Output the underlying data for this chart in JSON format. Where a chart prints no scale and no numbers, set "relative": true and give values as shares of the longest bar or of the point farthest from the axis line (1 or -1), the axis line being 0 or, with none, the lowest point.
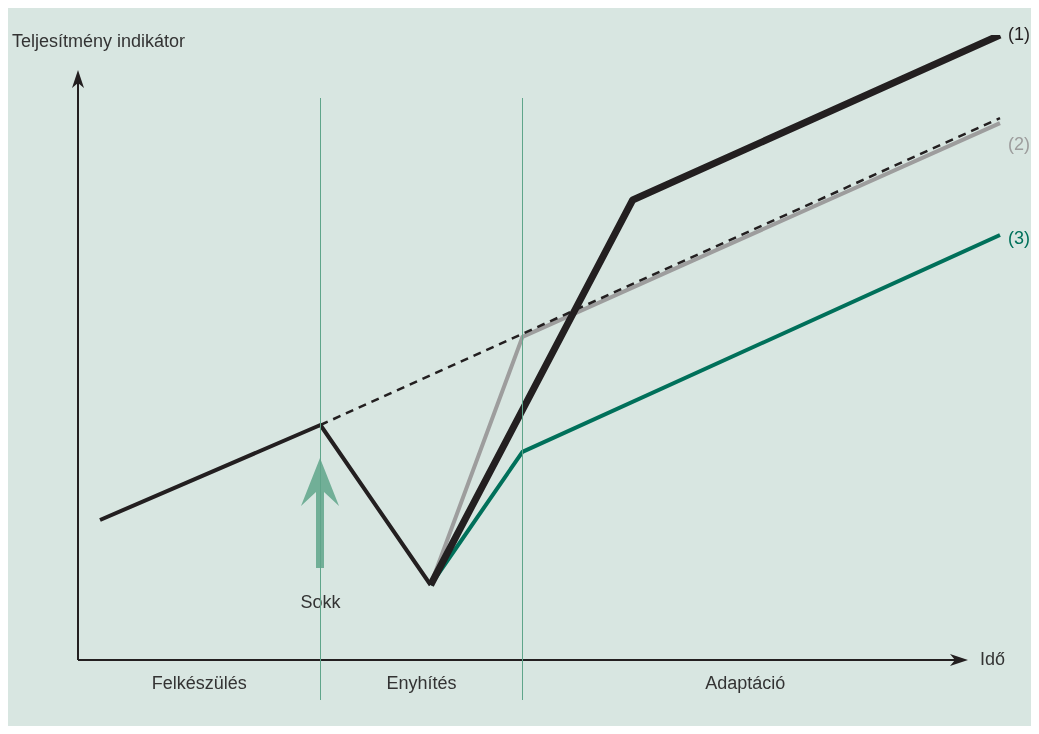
{
  "chart_data": {
    "type": "line",
    "relative": true,
    "xlabel": "Idő",
    "ylabel": "Teljesítmény indikátor",
    "marker": "none",
    "categories": [
      null,
      null,
      null,
      null,
      null,
      null,
      null,
      null,
      null,
      null,
      null,
      null,
      null,
      null,
      null,
      null,
      null,
      null,
      null,
      null,
      null,
      null,
      null,
      null,
      null,
      null,
      null,
      null,
      null,
      null,
      null,
      null,
      null,
      null,
      null,
      null,
      null,
      null,
      null,
      null,
      null,
      null,
      null,
      null,
      null,
      null,
      null,
      null,
      null,
      null
    ],
    "series": [
      {
        "color": "#231f20",
        "values": [
          0.224,
          null,
          null,
          null,
          null,
          null,
          null,
          null,
          null,
          null,
          null,
          null,
          0.376,
          null,
          null,
          null,
          null,
          null,
          0.12,
          null,
          null,
          null,
          null,
          null,
          null,
          null,
          null,
          null,
          null,
          null,
          null,
          null,
          null,
          null,
          null,
          null,
          null,
          null,
          null,
          null,
          null,
          null,
          null,
          null,
          null,
          null,
          null,
          null,
          null,
          null
        ]
      },
      {
        "color": "#231f20",
        "line_style": "dashed",
        "values": [
          null,
          null,
          null,
          null,
          null,
          null,
          null,
          null,
          null,
          null,
          null,
          null,
          0.376,
          null,
          null,
          null,
          null,
          null,
          null,
          null,
          null,
          null,
          null,
          null,
          null,
          null,
          null,
          null,
          null,
          null,
          null,
          null,
          null,
          null,
          null,
          null,
          null,
          null,
          null,
          null,
          null,
          null,
          null,
          null,
          null,
          null,
          null,
          null,
          null,
          0.867
        ]
      },
      {
        "name": "(1)",
        "color": "#231f20",
        "values": [
          null,
          null,
          null,
          null,
          null,
          null,
          null,
          null,
          null,
          null,
          null,
          null,
          null,
          null,
          null,
          null,
          null,
          null,
          0.12,
          null,
          null,
          null,
          null,
          null,
          null,
          null,
          null,
          null,
          null,
          0.736,
          null,
          null,
          null,
          null,
          null,
          null,
          null,
          null,
          null,
          null,
          null,
          null,
          null,
          null,
          null,
          null,
          null,
          null,
          null,
          1.0
        ]
      },
      {
        "name": "(2)",
        "color": "#9d9d9d",
        "values": [
          null,
          null,
          null,
          null,
          null,
          null,
          null,
          null,
          null,
          null,
          null,
          null,
          null,
          null,
          null,
          null,
          null,
          null,
          0.12,
          null,
          null,
          null,
          null,
          0.517,
          null,
          null,
          null,
          null,
          null,
          null,
          null,
          null,
          null,
          null,
          null,
          null,
          null,
          null,
          null,
          null,
          null,
          null,
          null,
          null,
          null,
          null,
          null,
          null,
          null,
          0.859
        ]
      },
      {
        "name": "(3)",
        "color": "#00705a",
        "values": [
          null,
          null,
          null,
          null,
          null,
          null,
          null,
          null,
          null,
          null,
          null,
          null,
          null,
          null,
          null,
          null,
          null,
          null,
          0.12,
          null,
          null,
          null,
          null,
          0.333,
          null,
          null,
          null,
          null,
          null,
          null,
          null,
          null,
          null,
          null,
          null,
          null,
          null,
          null,
          null,
          null,
          null,
          null,
          null,
          null,
          null,
          null,
          null,
          null,
          null,
          0.68
        ]
      }
    ],
    "annotations": [
      "Felkészülés",
      "Enyhítés",
      "Adaptáció",
      "Sokk"
    ]
  }
}
